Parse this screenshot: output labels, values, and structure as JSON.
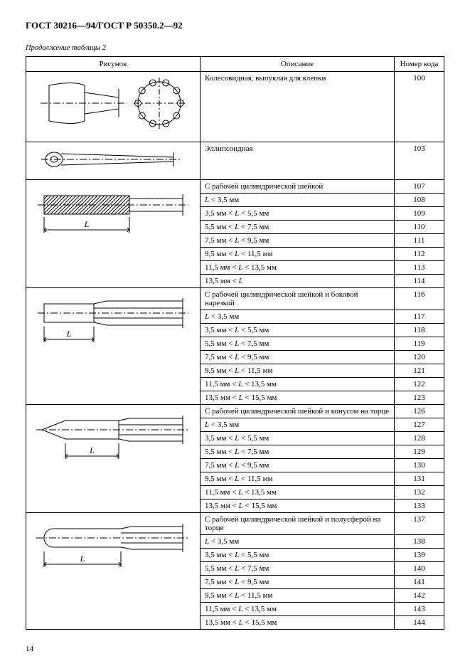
{
  "doc_title": "ГОСТ 30216—94/ГОСТ Р 50350.2—92",
  "continuation": "Продолжение таблицы 2",
  "headers": {
    "fig": "Рисунок",
    "desc": "Описание",
    "code": "Номер кода"
  },
  "page_number": "14",
  "groups": [
    {
      "fig": "wheel",
      "rows": [
        {
          "desc": "Колесовидная, выпуклая для клепки",
          "code": "100"
        }
      ],
      "fig_height": 90
    },
    {
      "fig": "ellipsoid",
      "rows": [
        {
          "desc": "Эллипсоидная",
          "code": "103"
        }
      ],
      "fig_height": 44
    },
    {
      "fig": "cyl_plain",
      "rows": [
        {
          "desc": "С рабочей цилиндрической шейкой",
          "code": "107"
        },
        {
          "desc_html": "<span class='L'>L</span> &lt; 3,5 мм",
          "code": "108"
        },
        {
          "desc_html": "3,5 мм &lt; <span class='L'>L</span> &lt; 5,5 мм",
          "code": "109"
        },
        {
          "desc_html": "5,5 мм &lt; <span class='L'>L</span> &lt; 7,5 мм",
          "code": "110"
        },
        {
          "desc_html": "7,5 мм &lt; <span class='L'>L</span> &lt; 9,5 мм",
          "code": "111"
        },
        {
          "desc_html": "9,5 мм &lt; <span class='L'>L</span> &lt; 11,5 мм",
          "code": "112"
        },
        {
          "desc_html": "11,5 мм &lt; <span class='L'>L</span> &lt; 13,5 мм",
          "code": "113"
        },
        {
          "desc_html": "13,5 мм &lt; <span class='L'>L</span>",
          "code": "114"
        }
      ],
      "fig_height": 110
    },
    {
      "fig": "cyl_side_thread",
      "rows": [
        {
          "desc": "С рабочей цилиндрической шейкой и боковой нарезкой",
          "code": "116"
        },
        {
          "desc_html": "<span class='L'>L</span> &lt; 3,5 мм",
          "code": "117"
        },
        {
          "desc_html": "3,5 мм &lt; <span class='L'>L</span> &lt; 5,5 мм",
          "code": "118"
        },
        {
          "desc_html": "5,5 мм &lt; <span class='L'>L</span> &lt; 7,5 мм",
          "code": "119"
        },
        {
          "desc_html": "7,5 мм &lt; <span class='L'>L</span> &lt; 9,5 мм",
          "code": "120"
        },
        {
          "desc_html": "9,5 мм &lt; <span class='L'>L</span> &lt; 11,5 мм",
          "code": "121"
        },
        {
          "desc_html": "11,5 мм &lt; <span class='L'>L</span> &lt; 13,5 мм",
          "code": "122"
        },
        {
          "desc_html": "13,5 мм &lt; <span class='L'>L</span> &lt; 15,5 мм",
          "code": "123"
        }
      ],
      "fig_height": 110
    },
    {
      "fig": "cyl_cone",
      "rows": [
        {
          "desc": "С рабочей цилиндрической шейкой и конусом на торце",
          "code": "126"
        },
        {
          "desc_html": "<span class='L'>L</span> &lt; 3,5 мм",
          "code": "127"
        },
        {
          "desc_html": "3,5 мм &lt; <span class='L'>L</span> &lt; 5,5 мм",
          "code": "128"
        },
        {
          "desc_html": "5,5 мм &lt; <span class='L'>L</span> &lt; 7,5 мм",
          "code": "129"
        },
        {
          "desc_html": "7,5 мм &lt; <span class='L'>L</span> &lt; 9,5 мм",
          "code": "130"
        },
        {
          "desc_html": "9,5 мм &lt; <span class='L'>L</span> &lt; 11,5 мм",
          "code": "131"
        },
        {
          "desc_html": "11,5 мм &lt; <span class='L'>L</span> &lt; 13,5 мм",
          "code": "132"
        },
        {
          "desc_html": "13,5 мм &lt; <span class='L'>L</span> &lt; 15,5 мм",
          "code": "133"
        }
      ],
      "fig_height": 110
    },
    {
      "fig": "cyl_hemisphere",
      "rows": [
        {
          "desc": "С рабочей цилиндрической шейкой и полусферой на торце",
          "code": "137"
        },
        {
          "desc_html": "<span class='L'>L</span> &lt; 3,5 мм",
          "code": "138"
        },
        {
          "desc_html": "3,5 мм &lt; <span class='L'>L</span> &lt; 5,5 мм",
          "code": "139"
        },
        {
          "desc_html": "5,5 мм &lt; <span class='L'>L</span> &lt; 7,5 мм",
          "code": "140"
        },
        {
          "desc_html": "7,5 мм &lt; <span class='L'>L</span> &lt; 9,5 мм",
          "code": "141"
        },
        {
          "desc_html": "9,5 мм &lt; <span class='L'>L</span> &lt; 11,5 мм",
          "code": "142"
        },
        {
          "desc_html": "11,5 мм &lt; <span class='L'>L</span> &lt; 13,5 мм",
          "code": "143"
        },
        {
          "desc_html": "13,5 мм &lt; <span class='L'>L</span> &lt; 15,5 мм",
          "code": "144"
        }
      ],
      "fig_height": 110
    }
  ],
  "svg_style": {
    "stroke": "#000000",
    "stroke_width": 1,
    "hatch_spacing": 5,
    "label_L": "L",
    "label_font_size": 12
  }
}
